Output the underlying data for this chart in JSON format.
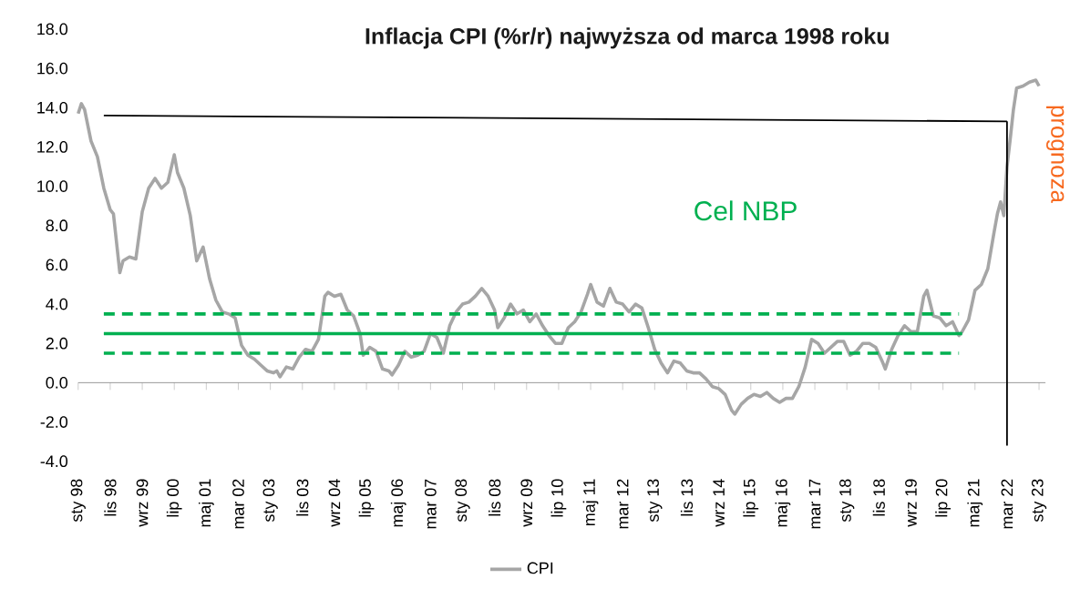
{
  "chart_data": {
    "type": "line",
    "title": "Inflacja CPI (%r/r) najwyższa od marca 1998 roku",
    "xlim": [
      "1998-01",
      "2023-03"
    ],
    "xticks": [
      {
        "value": "1998-01",
        "label": "sty 98"
      },
      {
        "value": "1998-11",
        "label": "lis 98"
      },
      {
        "value": "1999-09",
        "label": "wrz 99"
      },
      {
        "value": "2000-07",
        "label": "lip 00"
      },
      {
        "value": "2001-05",
        "label": "maj 01"
      },
      {
        "value": "2002-03",
        "label": "mar 02"
      },
      {
        "value": "2003-01",
        "label": "sty 03"
      },
      {
        "value": "2003-11",
        "label": "lis 03"
      },
      {
        "value": "2004-09",
        "label": "wrz 04"
      },
      {
        "value": "2005-07",
        "label": "lip 05"
      },
      {
        "value": "2006-05",
        "label": "maj 06"
      },
      {
        "value": "2007-03",
        "label": "mar 07"
      },
      {
        "value": "2008-01",
        "label": "sty 08"
      },
      {
        "value": "2008-11",
        "label": "lis 08"
      },
      {
        "value": "2009-09",
        "label": "wrz 09"
      },
      {
        "value": "2010-07",
        "label": "lip 10"
      },
      {
        "value": "2011-05",
        "label": "maj 11"
      },
      {
        "value": "2012-03",
        "label": "mar 12"
      },
      {
        "value": "2013-01",
        "label": "sty 13"
      },
      {
        "value": "2013-11",
        "label": "lis 13"
      },
      {
        "value": "2014-09",
        "label": "wrz 14"
      },
      {
        "value": "2015-07",
        "label": "lip 15"
      },
      {
        "value": "2016-05",
        "label": "maj 16"
      },
      {
        "value": "2017-03",
        "label": "mar 17"
      },
      {
        "value": "2018-01",
        "label": "sty 18"
      },
      {
        "value": "2018-11",
        "label": "lis 18"
      },
      {
        "value": "2019-09",
        "label": "wrz 19"
      },
      {
        "value": "2020-07",
        "label": "lip 20"
      },
      {
        "value": "2021-05",
        "label": "maj 21"
      },
      {
        "value": "2022-03",
        "label": "mar 22"
      },
      {
        "value": "2023-01",
        "label": "sty 23"
      }
    ],
    "ylim": [
      -4,
      18
    ],
    "yticks": [
      {
        "value": -4,
        "label": "-4.0"
      },
      {
        "value": -2,
        "label": "-2.0"
      },
      {
        "value": 0,
        "label": "0.0"
      },
      {
        "value": 2,
        "label": "2.0"
      },
      {
        "value": 4,
        "label": "4.0"
      },
      {
        "value": 6,
        "label": "6.0"
      },
      {
        "value": 8,
        "label": "8.0"
      },
      {
        "value": 10,
        "label": "10.0"
      },
      {
        "value": 12,
        "label": "12.0"
      },
      {
        "value": 14,
        "label": "14.0"
      },
      {
        "value": 16,
        "label": "16.0"
      },
      {
        "value": 18,
        "label": "18.0"
      }
    ],
    "legend": "bottom",
    "series": [
      {
        "name": "CPI",
        "color": "#a6a6a6",
        "x": [
          "1998-01",
          "1998-02",
          "1998-03",
          "1998-05",
          "1998-07",
          "1998-09",
          "1998-11",
          "1998-12",
          "1999-02",
          "1999-03",
          "1999-05",
          "1999-07",
          "1999-09",
          "1999-11",
          "2000-01",
          "2000-03",
          "2000-05",
          "2000-07",
          "2000-08",
          "2000-10",
          "2000-12",
          "2001-02",
          "2001-04",
          "2001-06",
          "2001-08",
          "2001-10",
          "2001-12",
          "2002-02",
          "2002-04",
          "2002-06",
          "2002-08",
          "2002-10",
          "2002-12",
          "2003-02",
          "2003-03",
          "2003-04",
          "2003-06",
          "2003-08",
          "2003-10",
          "2003-12",
          "2004-02",
          "2004-04",
          "2004-06",
          "2004-07",
          "2004-09",
          "2004-11",
          "2005-01",
          "2005-03",
          "2005-05",
          "2005-06",
          "2005-08",
          "2005-10",
          "2005-12",
          "2006-02",
          "2006-03",
          "2006-05",
          "2006-07",
          "2006-09",
          "2006-11",
          "2007-01",
          "2007-03",
          "2007-05",
          "2007-07",
          "2007-09",
          "2007-11",
          "2008-01",
          "2008-03",
          "2008-05",
          "2008-07",
          "2008-09",
          "2008-11",
          "2008-12",
          "2009-02",
          "2009-04",
          "2009-06",
          "2009-08",
          "2009-10",
          "2009-12",
          "2010-02",
          "2010-04",
          "2010-06",
          "2010-08",
          "2010-10",
          "2010-12",
          "2011-02",
          "2011-04",
          "2011-05",
          "2011-07",
          "2011-09",
          "2011-11",
          "2012-01",
          "2012-03",
          "2012-05",
          "2012-07",
          "2012-09",
          "2012-11",
          "2013-01",
          "2013-03",
          "2013-05",
          "2013-07",
          "2013-09",
          "2013-11",
          "2014-01",
          "2014-03",
          "2014-05",
          "2014-07",
          "2014-09",
          "2014-11",
          "2015-01",
          "2015-02",
          "2015-04",
          "2015-06",
          "2015-08",
          "2015-10",
          "2015-12",
          "2016-02",
          "2016-04",
          "2016-06",
          "2016-08",
          "2016-10",
          "2016-12",
          "2017-02",
          "2017-04",
          "2017-06",
          "2017-08",
          "2017-10",
          "2017-12",
          "2018-02",
          "2018-04",
          "2018-06",
          "2018-08",
          "2018-10",
          "2018-12",
          "2019-01",
          "2019-03",
          "2019-05",
          "2019-07",
          "2019-09",
          "2019-11",
          "2020-01",
          "2020-02",
          "2020-04",
          "2020-06",
          "2020-08",
          "2020-10",
          "2020-12",
          "2021-01",
          "2021-03",
          "2021-05",
          "2021-07",
          "2021-09",
          "2021-11",
          "2021-12",
          "2022-01",
          "2022-02",
          "2022-03",
          "2022-04",
          "2022-05",
          "2022-06",
          "2022-08",
          "2022-10",
          "2022-12",
          "2023-01"
        ],
        "values": [
          13.7,
          14.2,
          13.9,
          12.3,
          11.5,
          9.9,
          8.8,
          8.6,
          5.6,
          6.2,
          6.4,
          6.3,
          8.7,
          9.9,
          10.4,
          9.9,
          10.2,
          11.6,
          10.7,
          9.9,
          8.5,
          6.2,
          6.9,
          5.3,
          4.2,
          3.6,
          3.5,
          3.3,
          1.9,
          1.4,
          1.2,
          0.9,
          0.6,
          0.5,
          0.6,
          0.3,
          0.8,
          0.7,
          1.3,
          1.7,
          1.6,
          2.2,
          4.4,
          4.6,
          4.4,
          4.5,
          3.7,
          3.4,
          2.5,
          1.4,
          1.8,
          1.6,
          0.7,
          0.6,
          0.4,
          0.9,
          1.6,
          1.3,
          1.4,
          1.6,
          2.5,
          2.3,
          1.5,
          2.9,
          3.6,
          4.0,
          4.1,
          4.4,
          4.8,
          4.4,
          3.7,
          2.8,
          3.3,
          4.0,
          3.5,
          3.7,
          3.1,
          3.5,
          2.9,
          2.4,
          2.0,
          2.0,
          2.8,
          3.1,
          3.6,
          4.5,
          5.0,
          4.1,
          3.9,
          4.8,
          4.1,
          4.0,
          3.6,
          4.0,
          3.8,
          2.8,
          1.7,
          1.0,
          0.5,
          1.1,
          1.0,
          0.6,
          0.5,
          0.5,
          0.2,
          -0.2,
          -0.3,
          -0.6,
          -1.4,
          -1.6,
          -1.1,
          -0.8,
          -0.6,
          -0.7,
          -0.5,
          -0.8,
          -1.0,
          -0.8,
          -0.8,
          -0.2,
          0.8,
          2.2,
          2.0,
          1.5,
          1.8,
          2.1,
          2.1,
          1.4,
          1.6,
          2.0,
          2.0,
          1.8,
          1.1,
          0.7,
          1.7,
          2.4,
          2.9,
          2.6,
          2.6,
          4.4,
          4.7,
          3.4,
          3.3,
          2.9,
          3.1,
          2.4,
          2.6,
          3.2,
          4.7,
          5.0,
          5.8,
          7.7,
          8.6,
          9.2,
          8.5,
          11.0,
          12.4,
          13.9,
          15.0,
          15.1,
          15.3,
          15.4,
          15.1
        ]
      },
      {
        "color": "#000000",
        "x": [
          "1998-09",
          "2022-03"
        ],
        "values": [
          13.6,
          13.3
        ]
      },
      {
        "color": "#000000",
        "x": [
          "2022-03",
          "2022-03"
        ],
        "values": [
          13.3,
          -3.2
        ]
      },
      {
        "color": "#00b050",
        "x": [
          "1998-09",
          "2021-01"
        ],
        "values": [
          2.5,
          2.5
        ]
      },
      {
        "color": "#00b050",
        "line_style": "dashed",
        "x": [
          "1998-09",
          "2020-12"
        ],
        "values": [
          3.5,
          3.5
        ]
      },
      {
        "color": "#00b050",
        "line_style": "dashed",
        "x": [
          "1998-09",
          "2020-12"
        ],
        "values": [
          1.5,
          1.5
        ]
      }
    ],
    "annotations": [
      "Cel NBP",
      "prognoza"
    ]
  }
}
